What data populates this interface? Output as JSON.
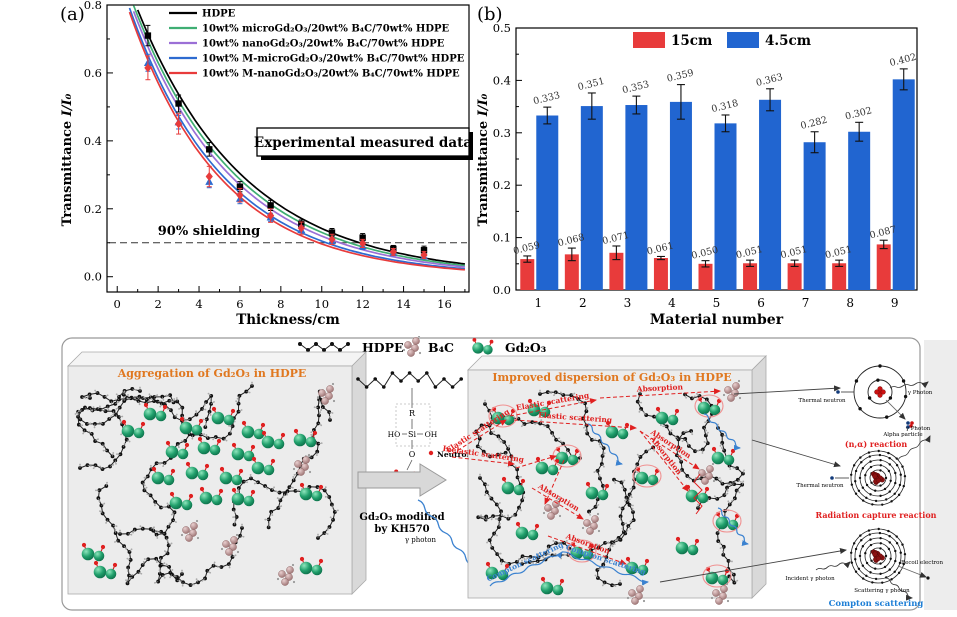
{
  "figure": {
    "panel_a_label": "(a)",
    "panel_b_label": "(b)"
  },
  "chart_data": [
    {
      "type": "line",
      "panel": "a",
      "xlabel": "Thickness/cm",
      "ylabel": {
        "text": "Transmittance ",
        "math": "I/I₀"
      },
      "xlim": [
        0,
        17
      ],
      "ylim": [
        0,
        0.8
      ],
      "xticks": [
        0,
        2,
        4,
        6,
        8,
        10,
        12,
        14,
        16
      ],
      "yticks": [
        0.0,
        0.2,
        0.4,
        0.6,
        0.8
      ],
      "grid": false,
      "legend_position": "top-left-inside",
      "annotation_box": "Experimental measured data",
      "shielding_line": {
        "y": 0.1,
        "label": "90% shielding"
      },
      "series": [
        {
          "name": "HDPE",
          "color": "#000000",
          "marker": "square",
          "fit": {
            "A": 0.95,
            "k": 0.19
          },
          "points": {
            "x": [
              1.5,
              3,
              4.5,
              6,
              7.5,
              9,
              10.5,
              12,
              13.5,
              15
            ],
            "y": [
              0.71,
              0.51,
              0.375,
              0.265,
              0.21,
              0.155,
              0.13,
              0.115,
              0.082,
              0.078
            ],
            "err": [
              0.03,
              0.025,
              0.02,
              0.015,
              0.015,
              0.012,
              0.012,
              0.012,
              0.01,
              0.012
            ]
          }
        },
        {
          "name": "10wt% microGd₂O₃/20wt% B₄C/70wt% HDPE",
          "color": "#3fae73",
          "fit": {
            "A": 0.935,
            "k": 0.197
          }
        },
        {
          "name": "10wt% nanoGd₂O₃/20wt% B₄C/70wt% HDPE",
          "color": "#9b6fd6",
          "fit": {
            "A": 0.92,
            "k": 0.204
          }
        },
        {
          "name": "10wt% M-microGd₂O₃/20wt% B₄C/70wt% HDPE",
          "color": "#2e6bd0",
          "marker": "triangle",
          "fit": {
            "A": 0.9,
            "k": 0.215
          },
          "points": {
            "x": [
              1.5,
              3,
              4.5,
              6,
              7.5,
              9,
              10.5,
              12,
              13.5,
              15
            ],
            "y": [
              0.63,
              0.455,
              0.28,
              0.23,
              0.175,
              0.138,
              0.105,
              0.09,
              0.07,
              0.06
            ],
            "err": [
              0.025,
              0.02,
              0.018,
              0.015,
              0.012,
              0.012,
              0.01,
              0.01,
              0.008,
              0.008
            ]
          }
        },
        {
          "name": "10wt% M-nanoGd₂O₃/20wt% B₄C/70wt% HDPE",
          "color": "#e83b3b",
          "marker": "diamond",
          "fit": {
            "A": 0.89,
            "k": 0.222
          },
          "points": {
            "x": [
              1.5,
              3,
              4.5,
              6,
              7.5,
              9,
              10.5,
              12,
              13.5,
              15
            ],
            "y": [
              0.615,
              0.45,
              0.295,
              0.24,
              0.18,
              0.143,
              0.11,
              0.098,
              0.073,
              0.064
            ],
            "err": [
              0.035,
              0.03,
              0.03,
              0.02,
              0.02,
              0.018,
              0.015,
              0.012,
              0.01,
              0.01
            ]
          }
        }
      ]
    },
    {
      "type": "bar",
      "panel": "b",
      "xlabel": "Material number",
      "ylabel": {
        "text": "Transmittance ",
        "math": "I/I₀"
      },
      "categories": [
        "1",
        "2",
        "3",
        "4",
        "5",
        "6",
        "7",
        "8",
        "9"
      ],
      "ylim": [
        0,
        0.5
      ],
      "yticks": [
        0.0,
        0.1,
        0.2,
        0.3,
        0.4,
        0.5
      ],
      "grid": false,
      "legend_position": "top-center-inside",
      "value_labels": true,
      "series": [
        {
          "name": "15cm",
          "color": "#e83b3b",
          "values": [
            0.059,
            0.068,
            0.071,
            0.061,
            0.05,
            0.051,
            0.051,
            0.051,
            0.087
          ],
          "errors": [
            0.006,
            0.012,
            0.013,
            0.003,
            0.006,
            0.006,
            0.006,
            0.006,
            0.008
          ]
        },
        {
          "name": "4.5cm",
          "color": "#2165d0",
          "values": [
            0.333,
            0.351,
            0.353,
            0.359,
            0.318,
            0.363,
            0.282,
            0.302,
            0.402
          ],
          "errors": [
            0.016,
            0.025,
            0.017,
            0.033,
            0.016,
            0.021,
            0.02,
            0.018,
            0.02
          ]
        }
      ]
    }
  ],
  "diagram": {
    "title_color": "#e07820",
    "legend": [
      {
        "icon": "hdpe-chain-icon",
        "label": "HDPE"
      },
      {
        "icon": "b4c-cluster-icon",
        "label": "B₄C"
      },
      {
        "icon": "gd2o3-spheres-icon",
        "label": "Gd₂O₃"
      }
    ],
    "left_panel_title": "Aggregation of Gd₂O₃ in HDPE",
    "right_panel_title": "Improved dispersion of Gd₂O₃ in HDPE",
    "center": {
      "neutron_label": "Neutron",
      "modified_line1": "Gd₂O₃ modified",
      "modified_line2": "by KH570",
      "gamma_label": "γ photon",
      "kh570_atoms": {
        "r": "R",
        "si": "Si",
        "ho": "HO",
        "oh": "OH",
        "o": "O"
      }
    },
    "process_labels": {
      "elastic": "Elastic scattering",
      "inelastic": "Inelastic scattering",
      "absorption": "Absorption",
      "compton": "Compton scattering"
    },
    "reactions": [
      {
        "caption": "(n,α) reaction",
        "caption_color": "#e02020",
        "neutron_label": "Thermal neutron",
        "photon_label": "γ Photon",
        "particle_label": "Alpha particle"
      },
      {
        "caption": "Radiation capture reaction",
        "caption_color": "#e02020",
        "neutron_label": "Thermal neutron",
        "photon_label": "γ Photon"
      },
      {
        "caption": "Compton scattering",
        "caption_color": "#1e7fd6",
        "incident_label": "Incident γ photon",
        "recoil_label": "Recoil electron",
        "scatter_label": "Scattering γ photon"
      }
    ]
  }
}
